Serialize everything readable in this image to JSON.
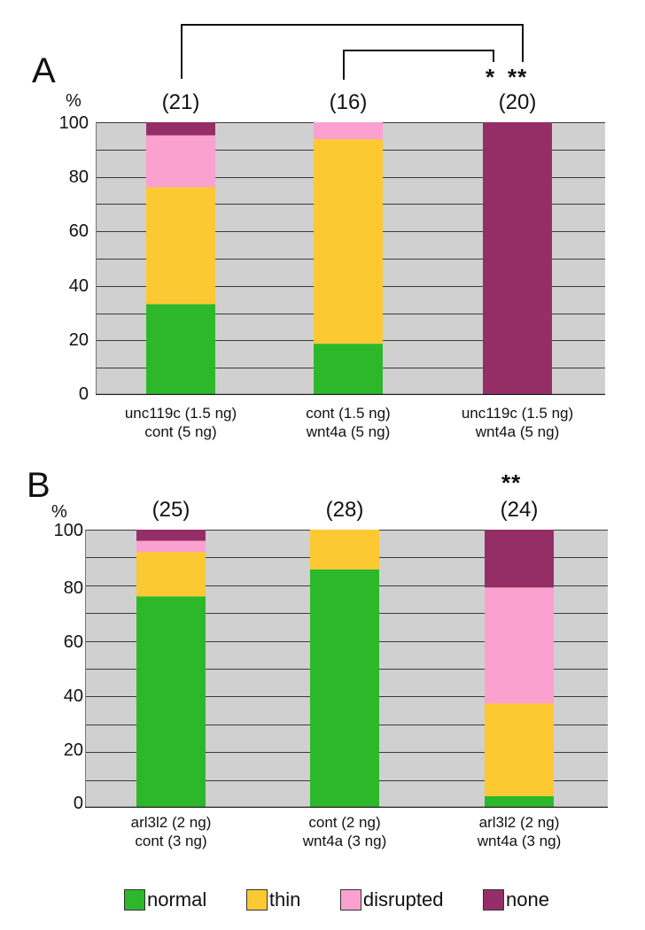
{
  "colors": {
    "normal": "#2db82c",
    "thin": "#fcc933",
    "disrupted": "#fba1d0",
    "none": "#952e66",
    "plot_bg": "#d0d0d0",
    "grid": "#3a3a3a",
    "bracket": "#111111"
  },
  "legend": [
    {
      "key": "normal",
      "label": "normal"
    },
    {
      "key": "thin",
      "label": "thin"
    },
    {
      "key": "disrupted",
      "label": "disrupted"
    },
    {
      "key": "none",
      "label": "none"
    }
  ],
  "chart_data": [
    {
      "type": "bar",
      "stacked": true,
      "panel": "A",
      "ylabel": "%",
      "ylim": [
        0,
        100
      ],
      "yticks": [
        "0",
        "20",
        "40",
        "60",
        "80",
        "100"
      ],
      "grid": true,
      "categories": [
        [
          "unc119c (1.5 ng)",
          "cont (5 ng)"
        ],
        [
          "cont (1.5 ng)",
          "wnt4a (5 ng)"
        ],
        [
          "unc119c (1.5 ng)",
          "wnt4a (5 ng)"
        ]
      ],
      "n_labels": [
        "(21)",
        "(16)",
        "(20)"
      ],
      "significance": [
        "*",
        "**"
      ],
      "series": [
        {
          "name": "normal",
          "values": [
            33.3,
            18.8,
            0
          ]
        },
        {
          "name": "thin",
          "values": [
            42.9,
            75.0,
            0
          ]
        },
        {
          "name": "disrupted",
          "values": [
            19.0,
            6.2,
            0
          ]
        },
        {
          "name": "none",
          "values": [
            4.8,
            0,
            100
          ]
        }
      ]
    },
    {
      "type": "bar",
      "stacked": true,
      "panel": "B",
      "ylabel": "%",
      "ylim": [
        0,
        100
      ],
      "yticks": [
        "0",
        "20",
        "40",
        "60",
        "80",
        "100"
      ],
      "grid": true,
      "categories": [
        [
          "arl3l2 (2 ng)",
          "cont (3 ng)"
        ],
        [
          "cont (2 ng)",
          "wnt4a (3 ng)"
        ],
        [
          "arl3l2 (2 ng)",
          "wnt4a (3 ng)"
        ]
      ],
      "n_labels": [
        "(25)",
        "(28)",
        "(24)"
      ],
      "significance": [
        "**"
      ],
      "series": [
        {
          "name": "normal",
          "values": [
            76,
            85.7,
            4.2
          ]
        },
        {
          "name": "thin",
          "values": [
            16,
            14.3,
            33.3
          ]
        },
        {
          "name": "disrupted",
          "values": [
            4,
            0,
            41.7
          ]
        },
        {
          "name": "none",
          "values": [
            4,
            0,
            20.8
          ]
        }
      ]
    }
  ]
}
